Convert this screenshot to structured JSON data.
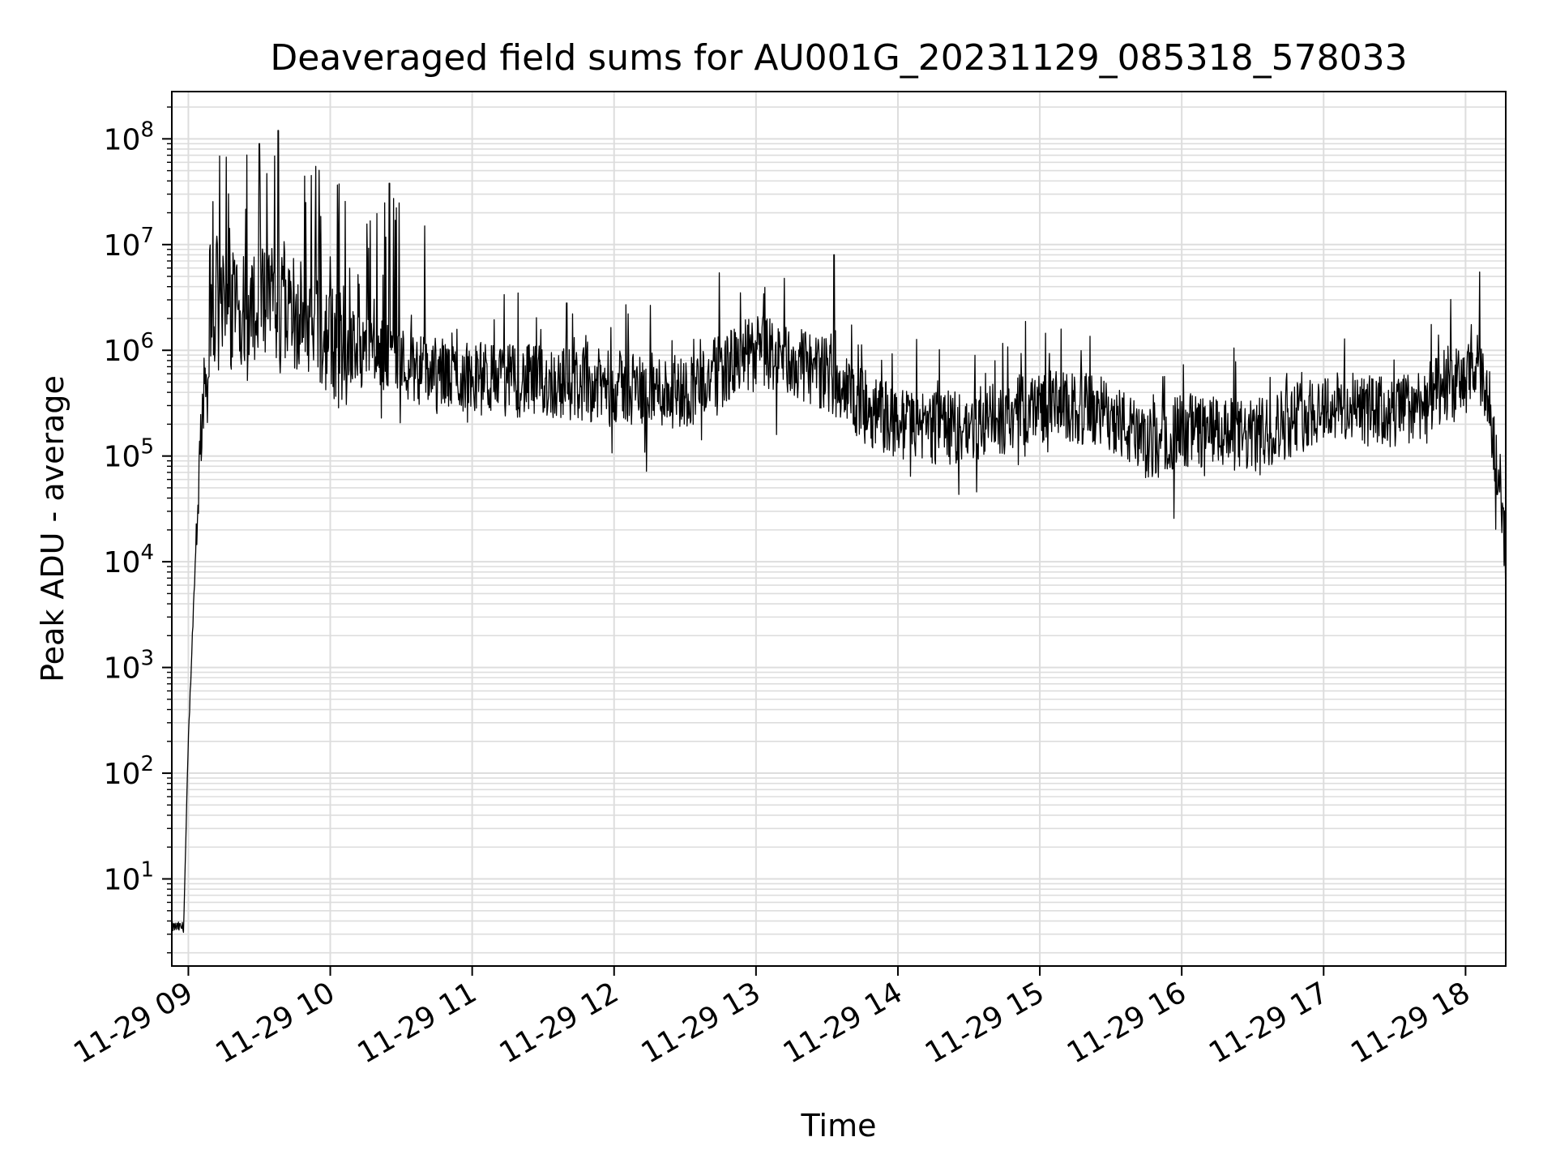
{
  "chart_data": {
    "type": "line",
    "title": "Deaveraged field sums for AU001G_20231129_085318_578033",
    "xlabel": "Time",
    "ylabel": "Peak ADU - average",
    "yscale": "log",
    "ylim": [
      1.5,
      280000000.0
    ],
    "xlim": [
      "2023-11-29 08:53",
      "2023-11-29 18:17"
    ],
    "grid": true,
    "x_ticks": [
      "11-29 09",
      "11-29 10",
      "11-29 11",
      "11-29 12",
      "11-29 13",
      "11-29 14",
      "11-29 15",
      "11-29 16",
      "11-29 17",
      "11-29 18"
    ],
    "y_ticks": [
      {
        "base": "10",
        "exp": "1",
        "value": 10
      },
      {
        "base": "10",
        "exp": "2",
        "value": 100
      },
      {
        "base": "10",
        "exp": "3",
        "value": 1000
      },
      {
        "base": "10",
        "exp": "4",
        "value": 10000
      },
      {
        "base": "10",
        "exp": "5",
        "value": 100000
      },
      {
        "base": "10",
        "exp": "6",
        "value": 1000000
      },
      {
        "base": "10",
        "exp": "7",
        "value": 10000000
      },
      {
        "base": "10",
        "exp": "8",
        "value": 100000000
      }
    ],
    "series": [
      {
        "color": "#000000",
        "note_values": "baseline level (y) at each time; envelope of a dense noisy trace",
        "x": [
          "08:53",
          "08:58",
          "09:00",
          "09:02",
          "09:04",
          "09:06",
          "09:10",
          "09:20",
          "09:35",
          "09:50",
          "10:00",
          "10:20",
          "10:45",
          "11:00",
          "11:30",
          "12:00",
          "12:30",
          "13:00",
          "13:30",
          "13:45",
          "14:00",
          "14:30",
          "15:00",
          "15:30",
          "15:45",
          "16:00",
          "16:30",
          "17:00",
          "17:30",
          "17:50",
          "18:05",
          "18:10",
          "18:13",
          "18:15",
          "18:17"
        ],
        "y": [
          3.5,
          3.5,
          200,
          3000,
          40000,
          300000,
          1500000,
          2500000,
          3000000,
          2000000,
          1200000,
          900000,
          600000,
          550000,
          500000,
          450000,
          400000,
          1000000,
          600000,
          300000,
          200000,
          180000,
          300000,
          250000,
          120000,
          180000,
          150000,
          300000,
          250000,
          400000,
          600000,
          300000,
          100000,
          50000,
          10000
        ]
      }
    ],
    "spikes": [
      {
        "x": "09:30",
        "y": 90000000.0
      },
      {
        "x": "09:38",
        "y": 120000000.0
      },
      {
        "x": "09:52",
        "y": 45000000.0
      },
      {
        "x": "10:25",
        "y": 38000000.0
      },
      {
        "x": "10:40",
        "y": 15000000.0
      },
      {
        "x": "13:33",
        "y": 8000000.0
      },
      {
        "x": "11:40",
        "y": 2800000.0
      },
      {
        "x": "12:05",
        "y": 2700000.0
      },
      {
        "x": "18:06",
        "y": 5500000.0
      }
    ]
  }
}
